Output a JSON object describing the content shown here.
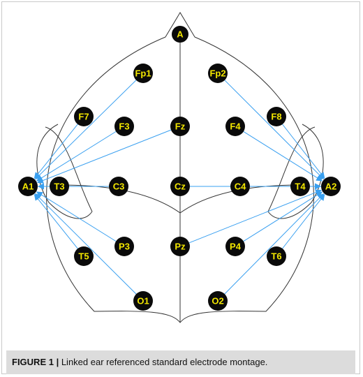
{
  "diagram": {
    "head_label": "A",
    "ear_left": "A1",
    "ear_right": "A2",
    "electrodes": {
      "fp1": "Fp1",
      "fp2": "Fp2",
      "f7": "F7",
      "f3": "F3",
      "fz": "Fz",
      "f4": "F4",
      "f8": "F8",
      "t3": "T3",
      "c3": "C3",
      "cz": "Cz",
      "c4": "C4",
      "t4": "T4",
      "t5": "T5",
      "p3": "P3",
      "pz": "Pz",
      "p4": "P4",
      "t6": "T6",
      "o1": "O1",
      "o2": "O2"
    },
    "node_color": "#0a0a0a",
    "label_color": "#f2e600",
    "arrow_color": "#3aa0f0",
    "outline_color": "#333333"
  },
  "caption": {
    "label": "FIGURE 1 |",
    "text": "Linked ear referenced standard electrode montage."
  }
}
